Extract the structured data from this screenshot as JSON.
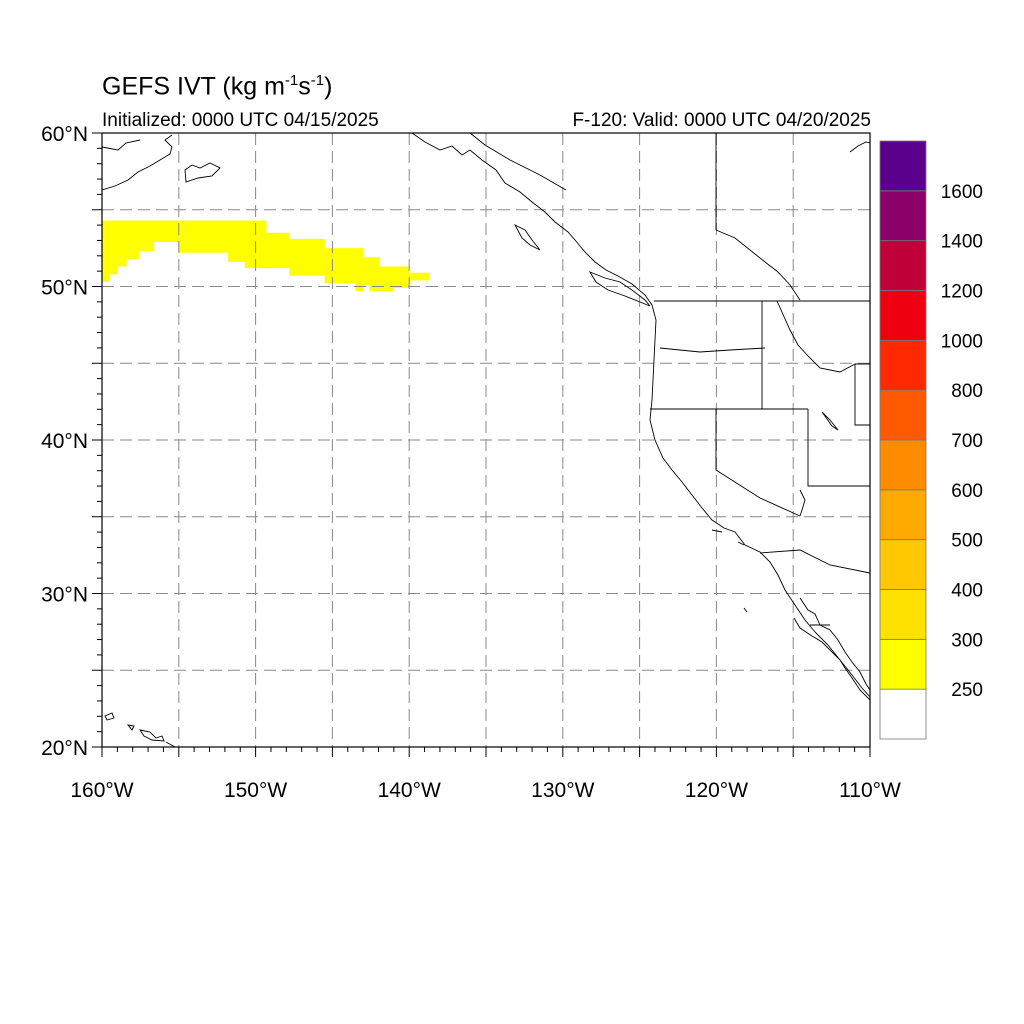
{
  "title": {
    "model": "GEFS IVT",
    "units_open": "(kg m",
    "exp1": "-1",
    "units_mid": "s",
    "exp2": "-1",
    "units_close": ")"
  },
  "initialized": "Initialized: 0000 UTC 04/15/2025",
  "valid": "F-120: Valid: 0000 UTC 04/20/2025",
  "axes": {
    "lat_labels": [
      "60°N",
      "50°N",
      "40°N",
      "30°N",
      "20°N"
    ],
    "lat_values": [
      60,
      50,
      40,
      30,
      20
    ],
    "lon_labels": [
      "160°W",
      "150°W",
      "140°W",
      "130°W",
      "120°W",
      "110°W"
    ],
    "lon_values": [
      -160,
      -150,
      -140,
      -130,
      -120,
      -110
    ],
    "lon_range": [
      -160,
      -110
    ],
    "lat_range": [
      20,
      60
    ],
    "grid": true
  },
  "colorbar": {
    "labels": [
      "250",
      "300",
      "400",
      "500",
      "600",
      "700",
      "800",
      "1000",
      "1200",
      "1400",
      "1600"
    ],
    "colors": [
      "#ffffff",
      "#ffff00",
      "#ffe100",
      "#ffc800",
      "#ffaa00",
      "#ff8c00",
      "#ff5a00",
      "#ff2800",
      "#ee0010",
      "#c00038",
      "#8b0069",
      "#5a008c"
    ]
  },
  "ivt_region": {
    "category": "250-300",
    "color": "#ffff00",
    "boundary_lonlat": [
      [
        -160,
        54.3
      ],
      [
        -149.3,
        54.3
      ],
      [
        -149.3,
        53.5
      ],
      [
        -147.8,
        53.5
      ],
      [
        -147.8,
        53.1
      ],
      [
        -145.5,
        53.1
      ],
      [
        -145.5,
        52.5
      ],
      [
        -143,
        52.5
      ],
      [
        -143,
        51.9
      ],
      [
        -141.9,
        51.9
      ],
      [
        -141.9,
        51.3
      ],
      [
        -140,
        51.3
      ],
      [
        -140,
        50.9
      ],
      [
        -138.7,
        50.9
      ],
      [
        -138.7,
        50.4
      ],
      [
        -140,
        50.4
      ],
      [
        -140,
        49.9
      ],
      [
        -141,
        49.9
      ],
      [
        -141,
        49.7
      ],
      [
        -142.6,
        49.7
      ],
      [
        -142.6,
        50.1
      ],
      [
        -143,
        50.1
      ],
      [
        -143,
        49.7
      ],
      [
        -143.5,
        49.7
      ],
      [
        -143.5,
        50.2
      ],
      [
        -145.5,
        50.2
      ],
      [
        -145.5,
        50.7
      ],
      [
        -147.8,
        50.7
      ],
      [
        -147.8,
        51.2
      ],
      [
        -150.7,
        51.2
      ],
      [
        -150.7,
        51.6
      ],
      [
        -151.8,
        51.6
      ],
      [
        -151.8,
        52.2
      ],
      [
        -155,
        52.2
      ],
      [
        -155,
        52.9
      ],
      [
        -156.6,
        52.9
      ],
      [
        -156.6,
        52.3
      ],
      [
        -157.6,
        52.3
      ],
      [
        -157.6,
        51.8
      ],
      [
        -158.4,
        51.8
      ],
      [
        -158.4,
        51.3
      ],
      [
        -159,
        51.3
      ],
      [
        -159,
        50.8
      ],
      [
        -159.5,
        50.8
      ],
      [
        -159.5,
        50.3
      ],
      [
        -160,
        50.3
      ]
    ]
  }
}
